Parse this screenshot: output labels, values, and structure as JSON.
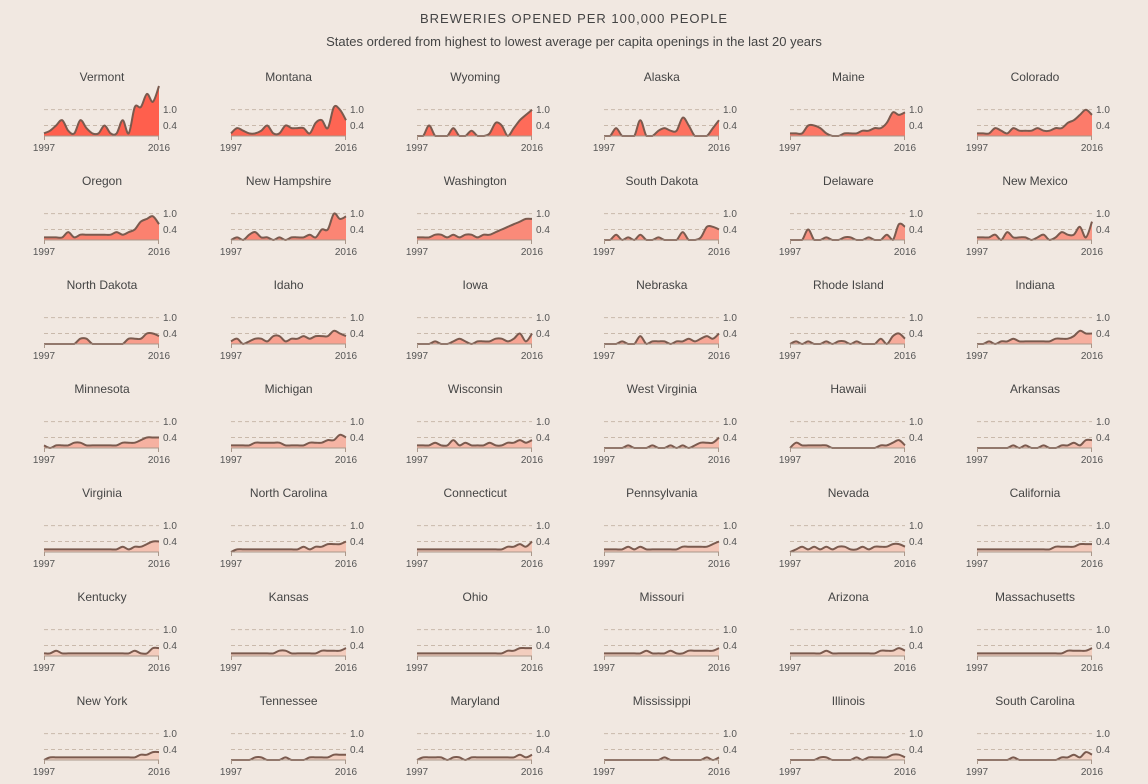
{
  "header": {
    "title": "BREWERIES OPENED PER 100,000 PEOPLE",
    "subtitle": "States ordered from highest to lowest average per capita openings in the last 20 years"
  },
  "colors": {
    "background": "#f1e8e1",
    "line": "#7a5a4e",
    "gridline": "#c9b9ab",
    "fill_high": "#ff5f4d",
    "fill_low": "#f2d1c2"
  },
  "chart_data": {
    "type": "area",
    "x": [
      1997,
      1998,
      1999,
      2000,
      2001,
      2002,
      2003,
      2004,
      2005,
      2006,
      2007,
      2008,
      2009,
      2010,
      2011,
      2012,
      2013,
      2014,
      2015,
      2016
    ],
    "x_tick_labels": [
      "1997",
      "2016"
    ],
    "y_ticks": [
      1.0,
      0.4
    ],
    "y_tick_labels": [
      "1.0",
      "0.4"
    ],
    "ylim": [
      0,
      1.9
    ],
    "grid": true,
    "series": [
      {
        "name": "Vermont",
        "values": [
          0.1,
          0.2,
          0.4,
          0.6,
          0.2,
          0.1,
          0.6,
          0.3,
          0.1,
          0.1,
          0.4,
          0.1,
          0.1,
          0.6,
          0.1,
          1.1,
          1.1,
          1.6,
          1.3,
          1.9
        ]
      },
      {
        "name": "Montana",
        "values": [
          0.1,
          0.3,
          0.2,
          0.1,
          0.1,
          0.2,
          0.4,
          0.1,
          0.1,
          0.4,
          0.3,
          0.3,
          0.3,
          0.1,
          0.5,
          0.6,
          0.3,
          1.1,
          1.0,
          0.6
        ]
      },
      {
        "name": "Wyoming",
        "values": [
          0.0,
          0.0,
          0.4,
          0.0,
          0.0,
          0.0,
          0.3,
          0.0,
          0.0,
          0.2,
          0.0,
          0.0,
          0.1,
          0.5,
          0.4,
          0.0,
          0.3,
          0.6,
          0.8,
          1.0
        ]
      },
      {
        "name": "Alaska",
        "values": [
          0.0,
          0.0,
          0.3,
          0.0,
          0.0,
          0.0,
          0.6,
          0.0,
          0.0,
          0.2,
          0.3,
          0.2,
          0.2,
          0.7,
          0.4,
          0.0,
          0.0,
          0.0,
          0.3,
          0.6
        ]
      },
      {
        "name": "Maine",
        "values": [
          0.1,
          0.1,
          0.1,
          0.4,
          0.4,
          0.3,
          0.1,
          0.0,
          0.0,
          0.1,
          0.1,
          0.1,
          0.2,
          0.2,
          0.3,
          0.3,
          0.5,
          0.9,
          0.8,
          0.9
        ]
      },
      {
        "name": "Colorado",
        "values": [
          0.1,
          0.1,
          0.1,
          0.3,
          0.2,
          0.1,
          0.3,
          0.2,
          0.2,
          0.2,
          0.3,
          0.2,
          0.2,
          0.3,
          0.3,
          0.5,
          0.6,
          0.8,
          1.0,
          0.8
        ]
      },
      {
        "name": "Oregon",
        "values": [
          0.1,
          0.1,
          0.1,
          0.1,
          0.3,
          0.1,
          0.2,
          0.2,
          0.2,
          0.2,
          0.2,
          0.2,
          0.3,
          0.2,
          0.3,
          0.4,
          0.7,
          0.8,
          0.9,
          0.6
        ]
      },
      {
        "name": "New Hampshire",
        "values": [
          0.0,
          0.1,
          0.0,
          0.2,
          0.3,
          0.1,
          0.1,
          0.0,
          0.1,
          0.0,
          0.1,
          0.1,
          0.1,
          0.2,
          0.1,
          0.4,
          0.4,
          1.0,
          0.8,
          0.9
        ]
      },
      {
        "name": "Washington",
        "values": [
          0.1,
          0.1,
          0.1,
          0.2,
          0.2,
          0.1,
          0.2,
          0.1,
          0.2,
          0.2,
          0.1,
          0.2,
          0.2,
          0.3,
          0.4,
          0.5,
          0.6,
          0.7,
          0.8,
          0.8
        ]
      },
      {
        "name": "South Dakota",
        "values": [
          0.0,
          0.0,
          0.2,
          0.0,
          0.1,
          0.0,
          0.2,
          0.0,
          0.0,
          0.1,
          0.0,
          0.0,
          0.0,
          0.3,
          0.0,
          0.0,
          0.1,
          0.5,
          0.5,
          0.4
        ]
      },
      {
        "name": "Delaware",
        "values": [
          0.0,
          0.0,
          0.0,
          0.4,
          0.0,
          0.0,
          0.1,
          0.0,
          0.0,
          0.1,
          0.1,
          0.0,
          0.0,
          0.1,
          0.0,
          0.0,
          0.2,
          0.0,
          0.6,
          0.5
        ]
      },
      {
        "name": "New Mexico",
        "values": [
          0.1,
          0.1,
          0.1,
          0.2,
          0.0,
          0.3,
          0.1,
          0.1,
          0.1,
          0.0,
          0.1,
          0.2,
          0.0,
          0.1,
          0.3,
          0.2,
          0.2,
          0.5,
          0.1,
          0.7
        ]
      },
      {
        "name": "North Dakota",
        "values": [
          0.0,
          0.0,
          0.0,
          0.0,
          0.0,
          0.0,
          0.2,
          0.2,
          0.0,
          0.0,
          0.0,
          0.0,
          0.0,
          0.0,
          0.2,
          0.2,
          0.2,
          0.4,
          0.4,
          0.3
        ]
      },
      {
        "name": "Idaho",
        "values": [
          0.1,
          0.2,
          0.0,
          0.1,
          0.2,
          0.2,
          0.1,
          0.3,
          0.3,
          0.1,
          0.2,
          0.2,
          0.3,
          0.2,
          0.3,
          0.3,
          0.3,
          0.5,
          0.4,
          0.3
        ]
      },
      {
        "name": "Iowa",
        "values": [
          0.0,
          0.0,
          0.0,
          0.1,
          0.0,
          0.0,
          0.1,
          0.2,
          0.1,
          0.0,
          0.1,
          0.1,
          0.1,
          0.2,
          0.2,
          0.1,
          0.2,
          0.4,
          0.1,
          0.4
        ]
      },
      {
        "name": "Nebraska",
        "values": [
          0.0,
          0.0,
          0.0,
          0.1,
          0.0,
          0.0,
          0.3,
          0.0,
          0.1,
          0.1,
          0.1,
          0.0,
          0.1,
          0.1,
          0.2,
          0.1,
          0.2,
          0.3,
          0.2,
          0.4
        ]
      },
      {
        "name": "Rhode Island",
        "values": [
          0.0,
          0.1,
          0.0,
          0.1,
          0.0,
          0.0,
          0.1,
          0.0,
          0.1,
          0.1,
          0.0,
          0.1,
          0.0,
          0.0,
          0.0,
          0.2,
          0.0,
          0.3,
          0.4,
          0.2
        ]
      },
      {
        "name": "Indiana",
        "values": [
          0.0,
          0.0,
          0.1,
          0.0,
          0.1,
          0.1,
          0.2,
          0.1,
          0.1,
          0.1,
          0.1,
          0.1,
          0.1,
          0.2,
          0.2,
          0.2,
          0.3,
          0.5,
          0.4,
          0.4
        ]
      },
      {
        "name": "Minnesota",
        "values": [
          0.1,
          0.0,
          0.1,
          0.1,
          0.1,
          0.2,
          0.2,
          0.1,
          0.1,
          0.1,
          0.1,
          0.1,
          0.1,
          0.2,
          0.2,
          0.2,
          0.3,
          0.4,
          0.4,
          0.4
        ]
      },
      {
        "name": "Michigan",
        "values": [
          0.1,
          0.1,
          0.1,
          0.1,
          0.2,
          0.2,
          0.2,
          0.2,
          0.2,
          0.1,
          0.1,
          0.1,
          0.1,
          0.2,
          0.2,
          0.2,
          0.3,
          0.3,
          0.5,
          0.4
        ]
      },
      {
        "name": "Wisconsin",
        "values": [
          0.1,
          0.1,
          0.1,
          0.2,
          0.1,
          0.1,
          0.3,
          0.1,
          0.2,
          0.1,
          0.1,
          0.1,
          0.2,
          0.1,
          0.1,
          0.2,
          0.2,
          0.3,
          0.2,
          0.3
        ]
      },
      {
        "name": "West Virginia",
        "values": [
          0.0,
          0.0,
          0.0,
          0.0,
          0.1,
          0.0,
          0.0,
          0.0,
          0.1,
          0.0,
          0.0,
          0.1,
          0.0,
          0.1,
          0.0,
          0.1,
          0.2,
          0.2,
          0.2,
          0.4
        ]
      },
      {
        "name": "Hawaii",
        "values": [
          0.0,
          0.2,
          0.1,
          0.1,
          0.1,
          0.1,
          0.1,
          0.0,
          0.0,
          0.0,
          0.0,
          0.0,
          0.0,
          0.0,
          0.0,
          0.1,
          0.1,
          0.2,
          0.3,
          0.1
        ]
      },
      {
        "name": "Arkansas",
        "values": [
          0.0,
          0.0,
          0.0,
          0.0,
          0.0,
          0.0,
          0.1,
          0.0,
          0.1,
          0.0,
          0.0,
          0.1,
          0.0,
          0.0,
          0.1,
          0.1,
          0.2,
          0.1,
          0.3,
          0.3
        ]
      },
      {
        "name": "Virginia",
        "values": [
          0.1,
          0.1,
          0.1,
          0.1,
          0.1,
          0.1,
          0.1,
          0.1,
          0.1,
          0.1,
          0.1,
          0.1,
          0.1,
          0.2,
          0.1,
          0.2,
          0.2,
          0.3,
          0.4,
          0.4
        ]
      },
      {
        "name": "North Carolina",
        "values": [
          0.0,
          0.1,
          0.1,
          0.1,
          0.1,
          0.1,
          0.1,
          0.1,
          0.1,
          0.1,
          0.1,
          0.1,
          0.2,
          0.1,
          0.2,
          0.2,
          0.3,
          0.3,
          0.3,
          0.4
        ]
      },
      {
        "name": "Connecticut",
        "values": [
          0.1,
          0.1,
          0.1,
          0.1,
          0.1,
          0.1,
          0.1,
          0.1,
          0.1,
          0.1,
          0.1,
          0.1,
          0.1,
          0.1,
          0.1,
          0.2,
          0.2,
          0.3,
          0.2,
          0.4
        ]
      },
      {
        "name": "Pennsylvania",
        "values": [
          0.1,
          0.1,
          0.1,
          0.1,
          0.2,
          0.1,
          0.2,
          0.1,
          0.1,
          0.1,
          0.1,
          0.1,
          0.1,
          0.2,
          0.2,
          0.2,
          0.2,
          0.2,
          0.3,
          0.4
        ]
      },
      {
        "name": "Nevada",
        "values": [
          0.0,
          0.1,
          0.2,
          0.1,
          0.2,
          0.1,
          0.2,
          0.1,
          0.2,
          0.2,
          0.1,
          0.1,
          0.2,
          0.1,
          0.2,
          0.2,
          0.2,
          0.3,
          0.3,
          0.2
        ]
      },
      {
        "name": "California",
        "values": [
          0.1,
          0.1,
          0.1,
          0.1,
          0.1,
          0.1,
          0.1,
          0.1,
          0.1,
          0.1,
          0.1,
          0.1,
          0.1,
          0.2,
          0.2,
          0.2,
          0.2,
          0.3,
          0.3,
          0.3
        ]
      },
      {
        "name": "Kentucky",
        "values": [
          0.1,
          0.1,
          0.2,
          0.1,
          0.1,
          0.1,
          0.1,
          0.1,
          0.1,
          0.1,
          0.1,
          0.1,
          0.1,
          0.1,
          0.1,
          0.2,
          0.1,
          0.1,
          0.3,
          0.3
        ]
      },
      {
        "name": "Kansas",
        "values": [
          0.1,
          0.1,
          0.1,
          0.1,
          0.1,
          0.1,
          0.1,
          0.1,
          0.2,
          0.2,
          0.1,
          0.1,
          0.1,
          0.1,
          0.1,
          0.2,
          0.2,
          0.2,
          0.2,
          0.3
        ]
      },
      {
        "name": "Ohio",
        "values": [
          0.1,
          0.1,
          0.1,
          0.1,
          0.1,
          0.1,
          0.1,
          0.1,
          0.1,
          0.1,
          0.1,
          0.1,
          0.1,
          0.1,
          0.1,
          0.2,
          0.2,
          0.3,
          0.3,
          0.3
        ]
      },
      {
        "name": "Missouri",
        "values": [
          0.1,
          0.1,
          0.1,
          0.1,
          0.1,
          0.1,
          0.1,
          0.2,
          0.1,
          0.1,
          0.1,
          0.2,
          0.1,
          0.1,
          0.2,
          0.2,
          0.2,
          0.2,
          0.2,
          0.3
        ]
      },
      {
        "name": "Arizona",
        "values": [
          0.1,
          0.1,
          0.1,
          0.1,
          0.1,
          0.1,
          0.2,
          0.1,
          0.1,
          0.1,
          0.1,
          0.1,
          0.1,
          0.1,
          0.1,
          0.2,
          0.2,
          0.2,
          0.3,
          0.2
        ]
      },
      {
        "name": "Massachusetts",
        "values": [
          0.1,
          0.1,
          0.1,
          0.1,
          0.1,
          0.1,
          0.1,
          0.1,
          0.1,
          0.1,
          0.1,
          0.1,
          0.1,
          0.1,
          0.1,
          0.2,
          0.2,
          0.2,
          0.2,
          0.3
        ]
      },
      {
        "name": "New York",
        "values": [
          0.0,
          0.1,
          0.1,
          0.1,
          0.1,
          0.1,
          0.1,
          0.1,
          0.1,
          0.1,
          0.1,
          0.1,
          0.1,
          0.1,
          0.1,
          0.1,
          0.2,
          0.2,
          0.3,
          0.3
        ]
      },
      {
        "name": "Tennessee",
        "values": [
          0.0,
          0.0,
          0.0,
          0.0,
          0.1,
          0.1,
          0.0,
          0.0,
          0.0,
          0.1,
          0.0,
          0.0,
          0.0,
          0.1,
          0.1,
          0.1,
          0.1,
          0.2,
          0.2,
          0.2
        ]
      },
      {
        "name": "Maryland",
        "values": [
          0.0,
          0.1,
          0.1,
          0.1,
          0.1,
          0.0,
          0.1,
          0.1,
          0.0,
          0.1,
          0.1,
          0.1,
          0.1,
          0.1,
          0.1,
          0.1,
          0.1,
          0.2,
          0.1,
          0.2
        ]
      },
      {
        "name": "Mississippi",
        "values": [
          0.0,
          0.0,
          0.0,
          0.0,
          0.0,
          0.0,
          0.0,
          0.0,
          0.0,
          0.0,
          0.1,
          0.0,
          0.0,
          0.0,
          0.0,
          0.0,
          0.0,
          0.1,
          0.0,
          0.1
        ]
      },
      {
        "name": "Illinois",
        "values": [
          0.0,
          0.0,
          0.0,
          0.0,
          0.0,
          0.1,
          0.1,
          0.0,
          0.0,
          0.0,
          0.0,
          0.1,
          0.0,
          0.1,
          0.1,
          0.1,
          0.1,
          0.2,
          0.2,
          0.1
        ]
      },
      {
        "name": "South Carolina",
        "values": [
          0.0,
          0.0,
          0.0,
          0.0,
          0.0,
          0.0,
          0.1,
          0.0,
          0.0,
          0.0,
          0.0,
          0.0,
          0.0,
          0.0,
          0.1,
          0.1,
          0.2,
          0.1,
          0.3,
          0.2
        ]
      }
    ]
  }
}
